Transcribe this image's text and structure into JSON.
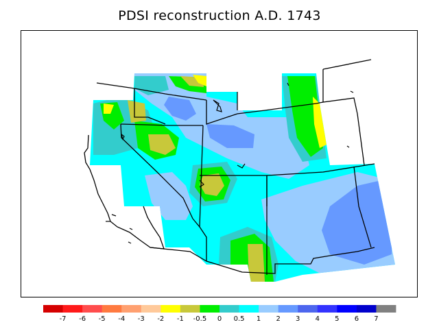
{
  "title": "PDSI reconstruction A.D. 1743",
  "colorbar": {
    "colors": [
      "#d50000",
      "#ff1a1a",
      "#ff4d4d",
      "#ff7a40",
      "#ffa070",
      "#ffc99a",
      "#ffff00",
      "#c8c83a",
      "#00ee00",
      "#33cccc",
      "#00ffff",
      "#99ccff",
      "#6699ff",
      "#4d66ee",
      "#3333ff",
      "#0000ff",
      "#0000cc",
      "#808080"
    ],
    "tick_labels": [
      "-7",
      "-6",
      "-5",
      "-4",
      "-3",
      "-2",
      "-1",
      "-0.5",
      "0",
      "0.5",
      "1",
      "2",
      "3",
      "4",
      "5",
      "6",
      "7"
    ]
  },
  "map": {
    "region": "Western United States",
    "field_colors": {
      "dry_strong": "#c8c83a",
      "dry": "#ffff00",
      "near_zero": "#00ee00",
      "slightly_wet": "#33cccc",
      "wet": "#00ffff",
      "wetter": "#99ccff",
      "very_wet": "#6699ff"
    }
  }
}
